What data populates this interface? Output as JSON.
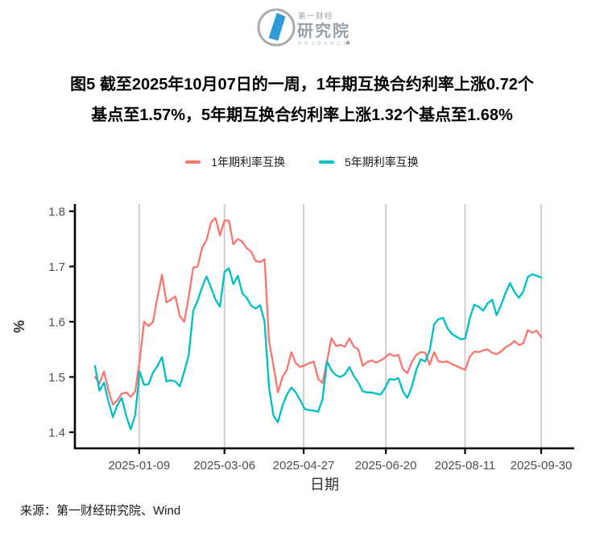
{
  "header": {
    "logo": {
      "brand_top": "第一财经",
      "brand_main": "研究院",
      "brand_sub": "RESEARCH",
      "brand_color": "#9aa3ab",
      "mark_color": "#2f9bd6"
    }
  },
  "title": {
    "line1": "图5 截至2025年10月07日的一周，1年期互换合约利率上涨0.72个",
    "line2": "基点至1.57%，5年期互换合约利率上涨1.32个基点至1.68%"
  },
  "legend": [
    {
      "label": "1年期利率互换",
      "color": "#F8766D"
    },
    {
      "label": "5年期利率互换",
      "color": "#00BFC4"
    }
  ],
  "source": "来源：第一财经研究院、Wind",
  "chart_data": {
    "type": "line",
    "title": "",
    "xlabel": "日期",
    "ylabel": "%",
    "ylim": [
      1.37,
      1.81
    ],
    "y_ticks": [
      1.4,
      1.5,
      1.6,
      1.7,
      1.8
    ],
    "x_ticks": [
      "2025-01-09",
      "2025-03-06",
      "2025-04-27",
      "2025-06-20",
      "2025-08-11",
      "2025-09-30"
    ],
    "x_start": "2024-12-11",
    "x_end": "2025-09-30",
    "grid": "vertical-only",
    "grid_color": "#cbcbcb",
    "legend_position": "top-center",
    "series": [
      {
        "name": "1年期利率互换",
        "color": "#F8766D",
        "values": [
          1.5,
          1.488,
          1.51,
          1.476,
          1.45,
          1.458,
          1.47,
          1.472,
          1.464,
          1.474,
          1.53,
          1.6,
          1.592,
          1.6,
          1.645,
          1.685,
          1.635,
          1.64,
          1.646,
          1.61,
          1.6,
          1.645,
          1.698,
          1.7,
          1.734,
          1.748,
          1.78,
          1.788,
          1.756,
          1.783,
          1.783,
          1.74,
          1.75,
          1.745,
          1.733,
          1.727,
          1.71,
          1.708,
          1.713,
          1.565,
          1.52,
          1.472,
          1.5,
          1.513,
          1.545,
          1.525,
          1.518,
          1.521,
          1.525,
          1.528,
          1.497,
          1.489,
          1.53,
          1.57,
          1.556,
          1.558,
          1.555,
          1.57,
          1.555,
          1.55,
          1.52,
          1.527,
          1.53,
          1.526,
          1.53,
          1.535,
          1.542,
          1.538,
          1.54,
          1.514,
          1.507,
          1.527,
          1.54,
          1.545,
          1.544,
          1.522,
          1.545,
          1.528,
          1.527,
          1.528,
          1.523,
          1.52,
          1.516,
          1.513,
          1.537,
          1.546,
          1.545,
          1.548,
          1.55,
          1.544,
          1.541,
          1.546,
          1.554,
          1.558,
          1.565,
          1.558,
          1.561,
          1.585,
          1.58,
          1.584,
          1.572
        ]
      },
      {
        "name": "5年期利率互换",
        "color": "#00BFC4",
        "values": [
          1.52,
          1.475,
          1.49,
          1.456,
          1.427,
          1.449,
          1.462,
          1.429,
          1.405,
          1.432,
          1.51,
          1.486,
          1.487,
          1.508,
          1.52,
          1.536,
          1.492,
          1.494,
          1.492,
          1.483,
          1.51,
          1.54,
          1.62,
          1.638,
          1.663,
          1.682,
          1.662,
          1.64,
          1.627,
          1.69,
          1.697,
          1.668,
          1.683,
          1.652,
          1.643,
          1.629,
          1.624,
          1.63,
          1.6,
          1.48,
          1.43,
          1.418,
          1.448,
          1.468,
          1.481,
          1.472,
          1.458,
          1.442,
          1.44,
          1.439,
          1.437,
          1.46,
          1.528,
          1.512,
          1.503,
          1.5,
          1.505,
          1.518,
          1.502,
          1.49,
          1.474,
          1.472,
          1.472,
          1.47,
          1.468,
          1.48,
          1.496,
          1.495,
          1.498,
          1.474,
          1.462,
          1.482,
          1.513,
          1.532,
          1.528,
          1.548,
          1.595,
          1.605,
          1.607,
          1.588,
          1.578,
          1.573,
          1.568,
          1.57,
          1.607,
          1.631,
          1.627,
          1.62,
          1.633,
          1.64,
          1.612,
          1.63,
          1.652,
          1.67,
          1.654,
          1.643,
          1.655,
          1.681,
          1.686,
          1.683,
          1.68
        ]
      }
    ]
  }
}
